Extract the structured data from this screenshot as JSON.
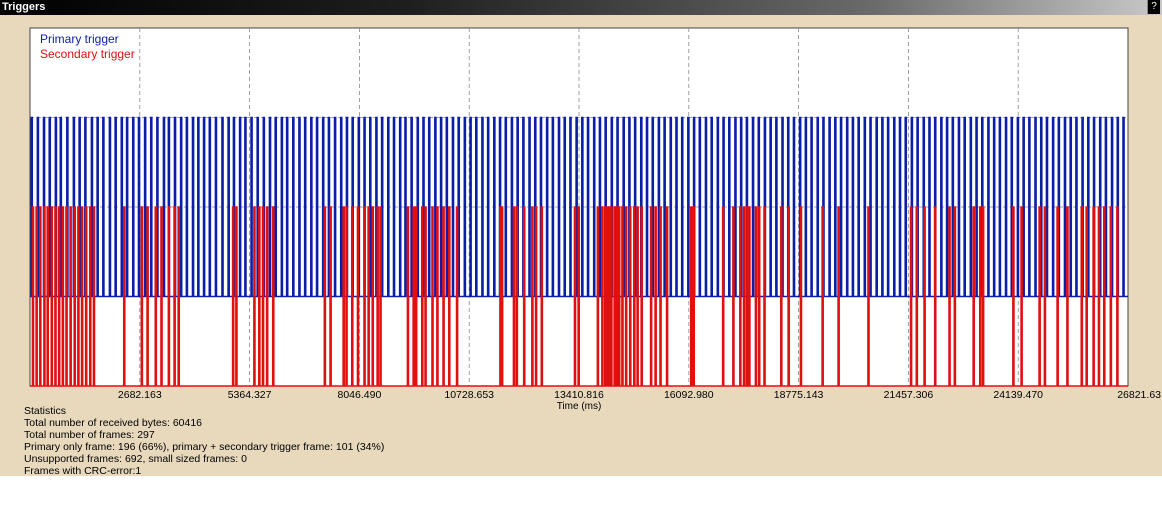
{
  "window": {
    "title": "Triggers",
    "help_label": "?"
  },
  "colors": {
    "primary": "#0b1ea8",
    "secondary": "#e01010",
    "panel_bg": "#e8d9bd",
    "plot_bg": "#ffffff",
    "grid": "#888888"
  },
  "chart_data": {
    "type": "line",
    "xlabel": "Time (ms)",
    "ylabel": "",
    "xlim": [
      0,
      26821.63
    ],
    "ylim": [
      0,
      1
    ],
    "x_ticks": [
      "2682.163",
      "5364.327",
      "8046.490",
      "10728.653",
      "13410.816",
      "16092.980",
      "18775.143",
      "21457.306",
      "24139.470",
      "26821.63"
    ],
    "grid": true,
    "legend_position": "top-left",
    "series": [
      {
        "name": "Primary trigger",
        "color": "#0b1ea8",
        "low": 0.25,
        "high": 0.75,
        "pulse_times_ms": [
          30,
          180,
          330,
          470,
          620,
          740,
          900,
          1060,
          1200,
          1340,
          1500,
          1640,
          1780,
          1940,
          2080,
          2230,
          2360,
          2510,
          2650,
          2800,
          2950,
          3100,
          3260,
          3380,
          3530,
          3680,
          3820,
          3970,
          4100,
          4240,
          4380,
          4530,
          4690,
          4840,
          4970,
          5120,
          5250,
          5400,
          5550,
          5700,
          5850,
          5990,
          6140,
          6270,
          6420,
          6570,
          6710,
          6860,
          7000,
          7150,
          7290,
          7440,
          7590,
          7730,
          7870,
          8020,
          8160,
          8300,
          8450,
          8590,
          8740,
          8880,
          9030,
          9160,
          9310,
          9460,
          9600,
          9740,
          9890,
          10030,
          10170,
          10320,
          10460,
          10610,
          10750,
          10890,
          11040,
          11180,
          11330,
          11470,
          11610,
          11760,
          11900,
          12040,
          12190,
          12330,
          12470,
          12620,
          12760,
          12910,
          13050,
          13190,
          13340,
          13480,
          13620,
          13770,
          13910,
          14050,
          14200,
          14340,
          14490,
          14630,
          14770,
          14920,
          15060,
          15200,
          15350,
          15490,
          15640,
          15780,
          15920,
          16070,
          16210,
          16350,
          16500,
          16640,
          16790,
          16930,
          17070,
          17220,
          17360,
          17500,
          17650,
          17790,
          17940,
          18080,
          18220,
          18370,
          18510,
          18650,
          18800,
          18940,
          19080,
          19230,
          19370,
          19520,
          19660,
          19800,
          19950,
          20090,
          20230,
          20380,
          20520,
          20670,
          20810,
          20950,
          21100,
          21240,
          21380,
          21530,
          21670,
          21820,
          21960,
          22100,
          22250,
          22390,
          22530,
          22680,
          22820,
          22970,
          23110,
          23250,
          23400,
          23540,
          23680,
          23830,
          23970,
          24120,
          24260,
          24400,
          24550,
          24690,
          24830,
          24980,
          25120,
          25270,
          25410,
          25550,
          25700,
          25840,
          25980,
          26130,
          26270,
          26420,
          26560,
          26700
        ]
      },
      {
        "name": "Secondary trigger",
        "color": "#e01010",
        "low": 0,
        "high": 0.5,
        "pulse_times_ms": [
          60,
          150,
          240,
          340,
          420,
          520,
          610,
          700,
          790,
          880,
          980,
          1080,
          1170,
          1260,
          1360,
          1460,
          1550,
          2290,
          2720,
          2860,
          3060,
          3200,
          3380,
          3520,
          3620,
          4950,
          5030,
          5470,
          5590,
          5680,
          5780,
          5930,
          7190,
          7330,
          7650,
          7720,
          7860,
          8000,
          8160,
          8260,
          8360,
          8480,
          8550,
          9220,
          9360,
          9420,
          9570,
          9650,
          9820,
          9940,
          10090,
          10230,
          10420,
          11480,
          11520,
          11810,
          11880,
          12060,
          12260,
          12350,
          12490,
          13300,
          13390,
          13860,
          13970,
          14040,
          14090,
          14140,
          14190,
          14270,
          14320,
          14380,
          14460,
          14550,
          14650,
          14750,
          14830,
          14930,
          15160,
          15270,
          15390,
          15550,
          16140,
          16200,
          16920,
          17170,
          17340,
          17430,
          17500,
          17560,
          17720,
          17800,
          17930,
          18340,
          18520,
          18820,
          19350,
          19740,
          20470,
          21510,
          21650,
          21840,
          22100,
          22450,
          22580,
          23040,
          23200,
          23270,
          24010,
          24210,
          24650,
          24780,
          25090,
          25330,
          25680,
          25800,
          25970,
          26100,
          26230,
          26390,
          26550
        ]
      }
    ]
  },
  "statistics": {
    "heading": "Statistics",
    "received_bytes": "Total number of received bytes: 60416",
    "frames": "Total number of frames: 297",
    "primary_only": "Primary only frame: 196 (66%), primary + secondary trigger frame: 101 (34%)",
    "unsupported": "Unsupported frames: 692, small sized frames: 0",
    "crc_errors": "Frames with CRC-error:1"
  }
}
